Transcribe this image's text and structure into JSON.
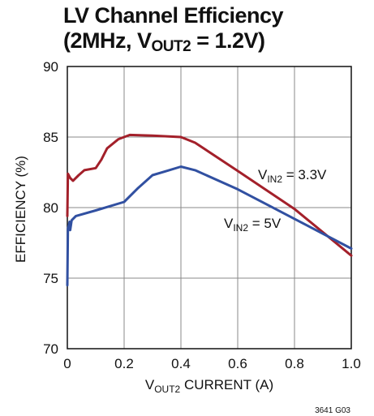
{
  "chart_data": {
    "type": "line",
    "title_line1": "LV Channel Efficiency",
    "title_line2_pre": "(2MHz, V",
    "title_line2_sub": "OUT2",
    "title_line2_post": " = 1.2V)",
    "xlabel_pre": "V",
    "xlabel_sub": "OUT2",
    "xlabel_post": " CURRENT (A)",
    "ylabel": "EFFICIENCY (%)",
    "xlim": [
      0,
      1.0
    ],
    "ylim": [
      70,
      90
    ],
    "xticks": [
      "0",
      "0.2",
      "0.4",
      "0.6",
      "0.8",
      "1.0"
    ],
    "yticks": [
      "70",
      "75",
      "80",
      "85",
      "90"
    ],
    "grid": true,
    "figure_code": "3641 G03",
    "series": [
      {
        "name_pre": "V",
        "name_sub": "IN2",
        "name_post": " = 3.3V",
        "color": "#a3202a",
        "points": [
          [
            0.0,
            79.4
          ],
          [
            0.002,
            82.4
          ],
          [
            0.01,
            82.1
          ],
          [
            0.02,
            81.9
          ],
          [
            0.04,
            82.3
          ],
          [
            0.06,
            82.65
          ],
          [
            0.1,
            82.8
          ],
          [
            0.12,
            83.4
          ],
          [
            0.14,
            84.2
          ],
          [
            0.18,
            84.85
          ],
          [
            0.22,
            85.15
          ],
          [
            0.3,
            85.1
          ],
          [
            0.4,
            85.0
          ],
          [
            0.45,
            84.6
          ],
          [
            0.6,
            82.6
          ],
          [
            0.8,
            79.9
          ],
          [
            1.0,
            76.6
          ]
        ]
      },
      {
        "name_pre": "V",
        "name_sub": "IN2",
        "name_post": " = 5V",
        "color": "#3150a1",
        "points": [
          [
            0.0,
            74.5
          ],
          [
            0.002,
            78.5
          ],
          [
            0.008,
            79.0
          ],
          [
            0.01,
            78.4
          ],
          [
            0.015,
            79.1
          ],
          [
            0.03,
            79.4
          ],
          [
            0.1,
            79.8
          ],
          [
            0.2,
            80.4
          ],
          [
            0.25,
            81.4
          ],
          [
            0.3,
            82.3
          ],
          [
            0.35,
            82.6
          ],
          [
            0.4,
            82.9
          ],
          [
            0.45,
            82.65
          ],
          [
            0.6,
            81.3
          ],
          [
            0.8,
            79.2
          ],
          [
            1.0,
            77.1
          ]
        ]
      }
    ]
  }
}
